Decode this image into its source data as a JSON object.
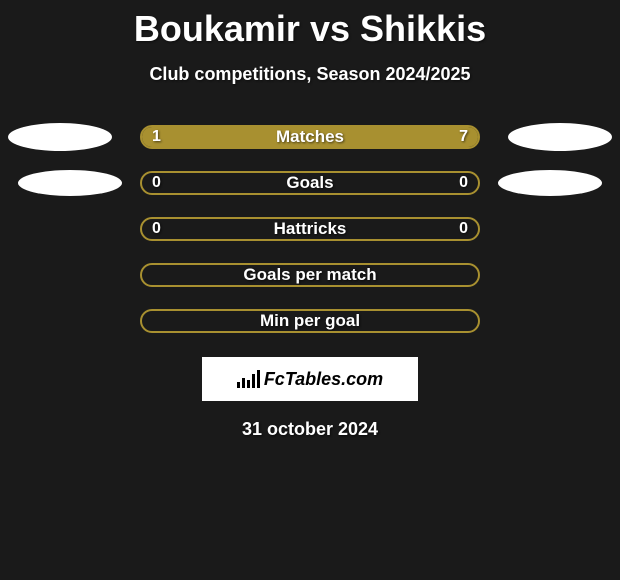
{
  "header": {
    "player1": "Boukamir",
    "vs": "vs",
    "player2": "Shikkis",
    "subtitle": "Club competitions, Season 2024/2025"
  },
  "stats": [
    {
      "label": "Matches",
      "left_value": "1",
      "right_value": "7",
      "left_fill_pct": 18,
      "right_fill_pct": 82,
      "show_left_badge": true,
      "show_right_badge": true,
      "badge_small": false
    },
    {
      "label": "Goals",
      "left_value": "0",
      "right_value": "0",
      "left_fill_pct": 0,
      "right_fill_pct": 0,
      "show_left_badge": true,
      "show_right_badge": true,
      "badge_small": true
    },
    {
      "label": "Hattricks",
      "left_value": "0",
      "right_value": "0",
      "left_fill_pct": 0,
      "right_fill_pct": 0,
      "show_left_badge": false,
      "show_right_badge": false,
      "badge_small": false
    },
    {
      "label": "Goals per match",
      "left_value": "",
      "right_value": "",
      "left_fill_pct": 0,
      "right_fill_pct": 0,
      "show_left_badge": false,
      "show_right_badge": false,
      "badge_small": false
    },
    {
      "label": "Min per goal",
      "left_value": "",
      "right_value": "",
      "left_fill_pct": 0,
      "right_fill_pct": 0,
      "show_left_badge": false,
      "show_right_badge": false,
      "badge_small": false
    }
  ],
  "footer": {
    "logo_text": "FcTables.com",
    "date": "31 october 2024"
  },
  "colors": {
    "background": "#1a1a1a",
    "bar_border": "#a89030",
    "bar_fill": "#a89030",
    "text": "#ffffff",
    "badge_bg": "#ffffff"
  }
}
